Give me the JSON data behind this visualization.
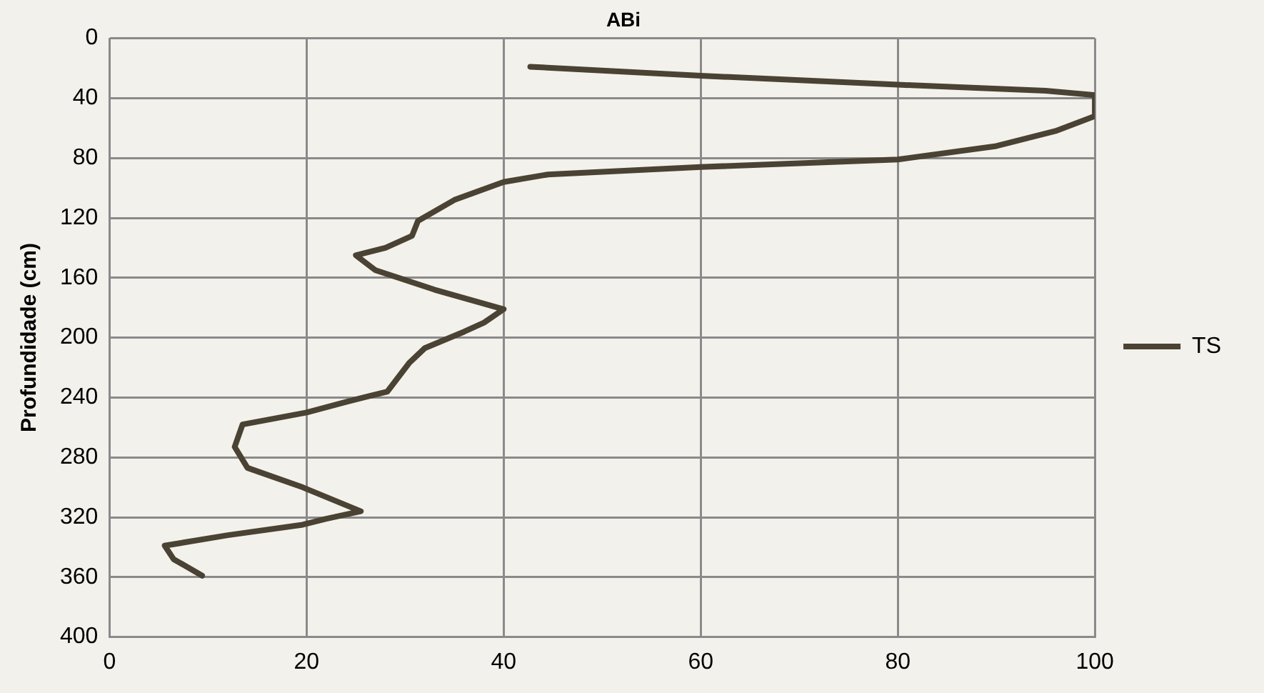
{
  "chart_data": {
    "type": "line",
    "title": "ABi",
    "ylabel": "Profundidade (cm)",
    "xlim": [
      0,
      100
    ],
    "xticks": [
      0,
      20,
      40,
      60,
      80,
      100
    ],
    "ylim": [
      400,
      0
    ],
    "yticks": [
      0,
      40,
      80,
      120,
      160,
      200,
      240,
      280,
      320,
      360,
      400
    ],
    "grid": true,
    "legend": "right",
    "marker": "none",
    "line_style": "solid",
    "series": [
      {
        "name": "TS",
        "color": "#4a4233",
        "x": [
          42.7,
          60,
          80,
          95,
          100,
          100,
          96,
          90,
          80,
          60,
          44.5,
          40,
          35,
          31.3,
          30.7,
          28,
          25,
          27,
          33,
          40,
          38,
          36,
          32,
          30.4,
          28.2,
          24,
          20,
          13.5,
          12.7,
          14,
          19.6,
          25.5,
          22,
          19.6,
          12,
          5.6,
          6.5,
          9.4
        ],
        "values": [
          19,
          25,
          31,
          35,
          38,
          52,
          62,
          72,
          81,
          86,
          91,
          96,
          108,
          122,
          132,
          140,
          145,
          155,
          168,
          181,
          190,
          196,
          207,
          217,
          236,
          243,
          250,
          258,
          273,
          287,
          300,
          316,
          321,
          325,
          332,
          339,
          348,
          359
        ]
      }
    ]
  }
}
